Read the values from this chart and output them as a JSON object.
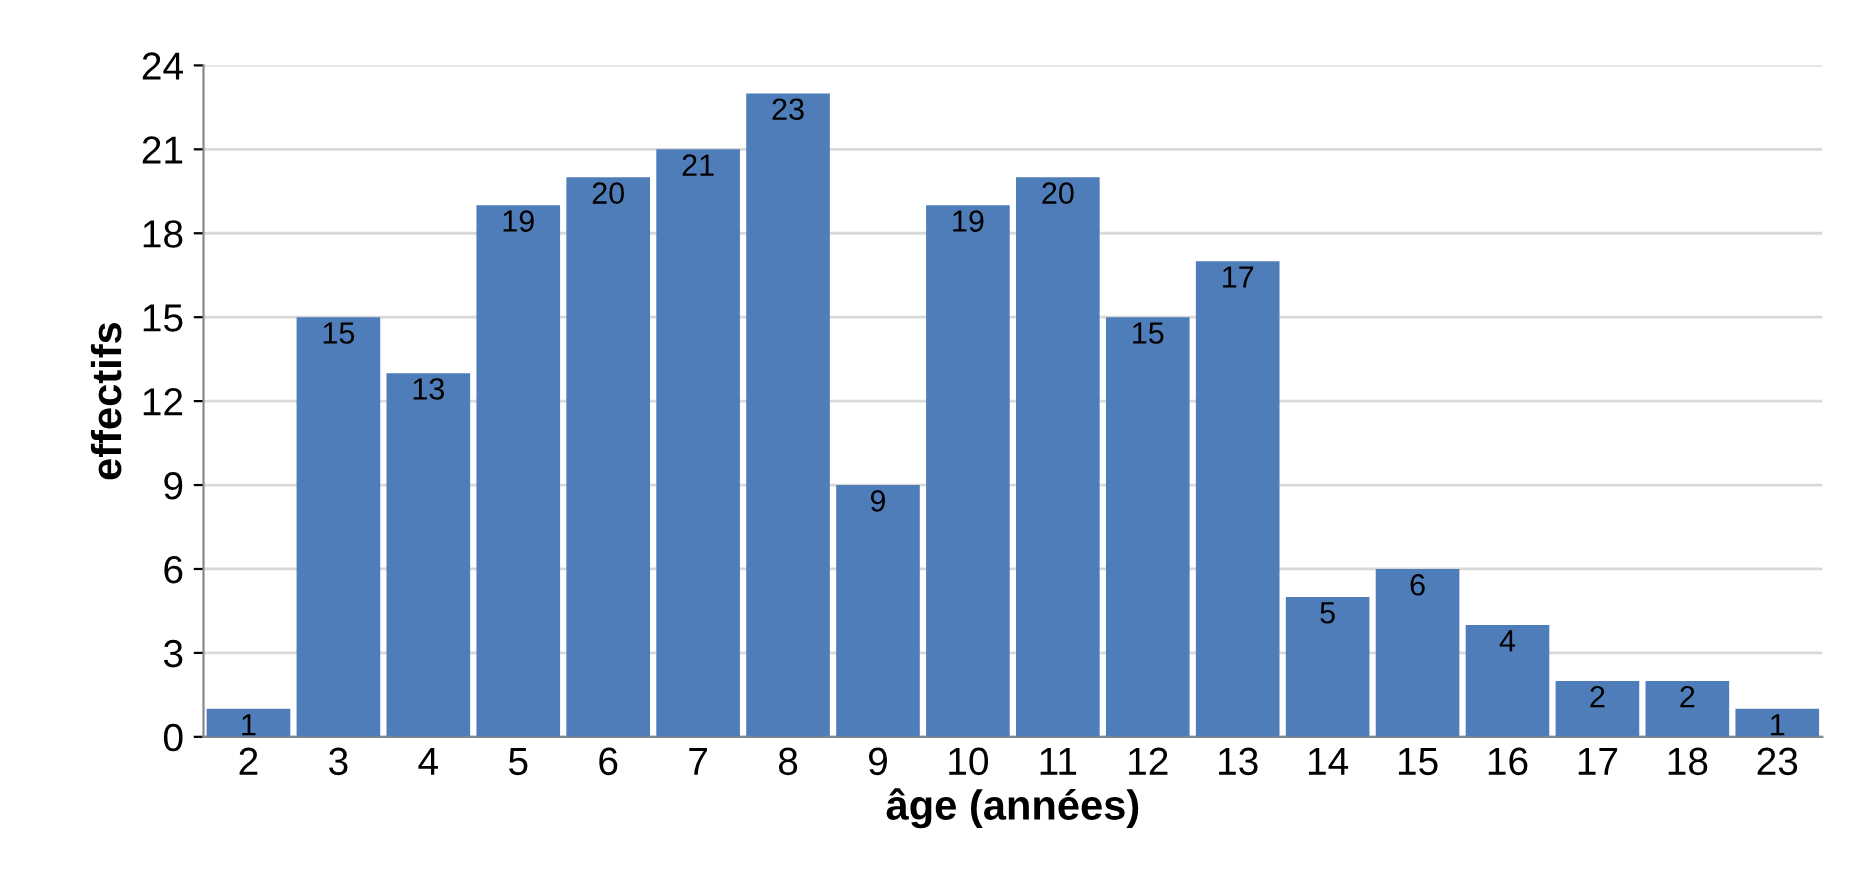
{
  "chart_data": {
    "type": "bar",
    "xlabel": "âge (années)",
    "ylabel": "effectifs",
    "categories": [
      "2",
      "3",
      "4",
      "5",
      "6",
      "7",
      "8",
      "9",
      "10",
      "11",
      "12",
      "13",
      "14",
      "15",
      "16",
      "17",
      "18",
      "23"
    ],
    "values": [
      1,
      15,
      13,
      19,
      20,
      21,
      23,
      9,
      19,
      20,
      15,
      17,
      5,
      6,
      4,
      2,
      2,
      1
    ],
    "color": "#4f7db9",
    "ylim": [
      0,
      24
    ],
    "yticks": [
      0,
      3,
      6,
      9,
      12,
      15,
      18,
      21,
      24
    ],
    "grid": "y",
    "data_labels": true
  }
}
